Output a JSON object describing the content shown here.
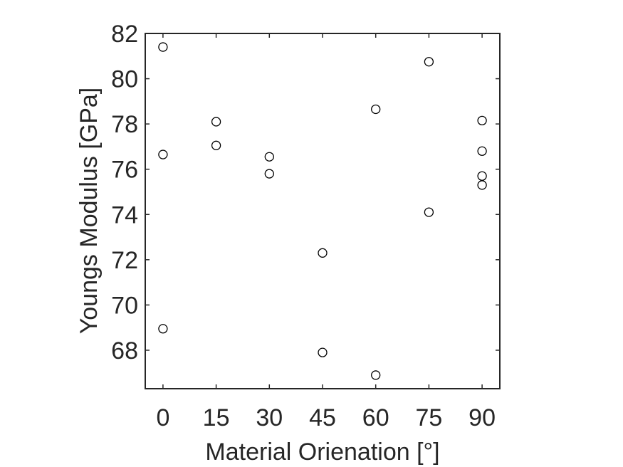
{
  "chart_data": {
    "type": "scatter",
    "title": "",
    "xlabel": "Material Orienation [°]",
    "ylabel": "Youngs Modulus [GPa]",
    "xlim": [
      -5,
      95
    ],
    "ylim": [
      66.3,
      82
    ],
    "xticks": [
      0,
      15,
      30,
      45,
      60,
      75,
      90
    ],
    "yticks": [
      68,
      70,
      72,
      74,
      76,
      78,
      80,
      82
    ],
    "grid": false,
    "marker": "open-circle",
    "series": [
      {
        "points": [
          {
            "x": 0,
            "y": 81.4
          },
          {
            "x": 0,
            "y": 76.65
          },
          {
            "x": 0,
            "y": 68.95
          },
          {
            "x": 15,
            "y": 78.1
          },
          {
            "x": 15,
            "y": 77.05
          },
          {
            "x": 30,
            "y": 76.55
          },
          {
            "x": 30,
            "y": 75.8
          },
          {
            "x": 45,
            "y": 72.3
          },
          {
            "x": 45,
            "y": 67.9
          },
          {
            "x": 60,
            "y": 78.65
          },
          {
            "x": 60,
            "y": 66.9
          },
          {
            "x": 75,
            "y": 80.75
          },
          {
            "x": 75,
            "y": 74.1
          },
          {
            "x": 90,
            "y": 78.15
          },
          {
            "x": 90,
            "y": 76.8
          },
          {
            "x": 90,
            "y": 75.7
          },
          {
            "x": 90,
            "y": 75.3
          }
        ]
      }
    ],
    "colors": {
      "axis": "#262626",
      "marker": "#000000",
      "background": "#ffffff"
    }
  }
}
